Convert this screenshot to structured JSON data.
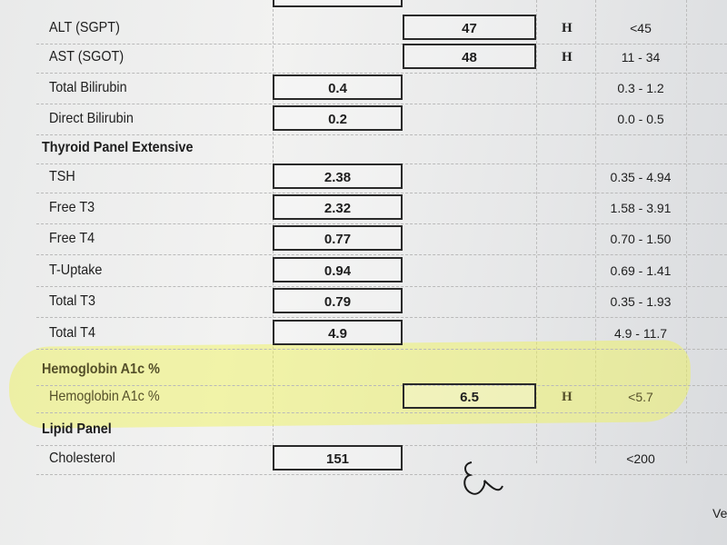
{
  "rows": [
    {
      "type": "test",
      "label": "ALT (SGPT)",
      "value": "47",
      "column": "out",
      "flag": "H",
      "range": "<45"
    },
    {
      "type": "test",
      "label": "AST (SGOT)",
      "value": "48",
      "column": "out",
      "flag": "H",
      "range": "11 - 34"
    },
    {
      "type": "test",
      "label": "Total Bilirubin",
      "value": "0.4",
      "column": "in",
      "flag": "",
      "range": "0.3 - 1.2"
    },
    {
      "type": "test",
      "label": "Direct Bilirubin",
      "value": "0.2",
      "column": "in",
      "flag": "",
      "range": "0.0 - 0.5"
    },
    {
      "type": "header",
      "label": "Thyroid Panel Extensive"
    },
    {
      "type": "test",
      "label": "TSH",
      "value": "2.38",
      "column": "in",
      "flag": "",
      "range": "0.35 - 4.94"
    },
    {
      "type": "test",
      "label": "Free T3",
      "value": "2.32",
      "column": "in",
      "flag": "",
      "range": "1.58 - 3.91"
    },
    {
      "type": "test",
      "label": "Free T4",
      "value": "0.77",
      "column": "in",
      "flag": "",
      "range": "0.70 - 1.50"
    },
    {
      "type": "test",
      "label": "T-Uptake",
      "value": "0.94",
      "column": "in",
      "flag": "",
      "range": "0.69 - 1.41"
    },
    {
      "type": "test",
      "label": "Total T3",
      "value": "0.79",
      "column": "in",
      "flag": "",
      "range": "0.35 - 1.93"
    },
    {
      "type": "test",
      "label": "Total T4",
      "value": "4.9",
      "column": "in",
      "flag": "",
      "range": "4.9 - 11.7"
    },
    {
      "type": "header",
      "label": "Hemoglobin A1c %",
      "highlight": true
    },
    {
      "type": "test",
      "label": "Hemoglobin A1c %",
      "value": "6.5",
      "column": "out",
      "flag": "H",
      "range": "<5.7",
      "highlight": true
    },
    {
      "type": "header",
      "label": "Lipid Panel"
    },
    {
      "type": "test",
      "label": "Cholesterol",
      "value": "151",
      "column": "in",
      "flag": "",
      "range": "<200"
    }
  ],
  "footer_fragment": "Ve",
  "colors": {
    "highlight": "#f0f550",
    "ink": "#1e1e1e"
  }
}
